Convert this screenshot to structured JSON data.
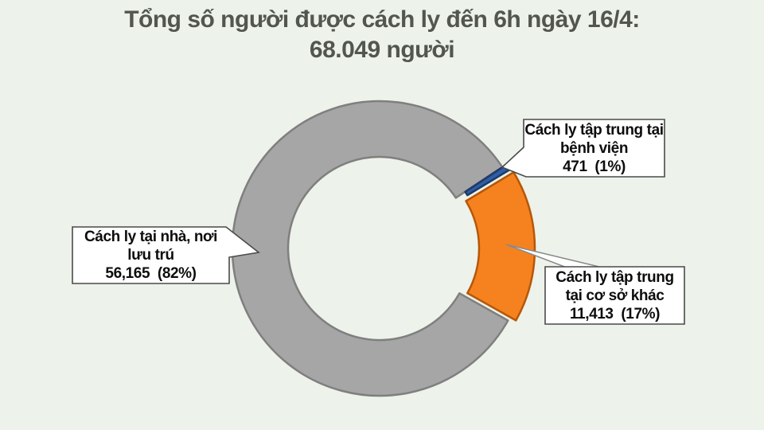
{
  "page": {
    "background_color": "#edf2ea"
  },
  "title": {
    "line1": "Tổng số người được cách ly đến 6h ngày 16/4:",
    "line2": "68.049 người",
    "color": "#53564e"
  },
  "chart_data": {
    "type": "pie",
    "donut": true,
    "title": "Tổng số người được cách ly đến 6h ngày 16/4: 68.049 người",
    "total": 68049,
    "unit": "người",
    "legend_position": "callouts",
    "segments": [
      {
        "label": "Cách ly tại nhà, nơi lưu trú",
        "value": 56165,
        "percent_label": "82%",
        "fill": "#a6a6a6",
        "stroke": "#7f7f7f"
      },
      {
        "label": "Cách ly tập trung tại bệnh viện",
        "value": 471,
        "percent_label": "1%",
        "fill": "#2f5da6",
        "stroke": "#1e3a66"
      },
      {
        "label": "Cách ly tập trung tại cơ sở khác",
        "value": 11413,
        "percent_label": "17%",
        "fill": "#f5821f",
        "stroke": "#b65708"
      }
    ]
  },
  "callouts": [
    {
      "id": "home",
      "lines": [
        "Cách ly tại nhà, nơi",
        "lưu trú",
        "56,165  (82%)"
      ]
    },
    {
      "id": "hospital",
      "lines": [
        "Cách ly tập trung tại",
        "bệnh viện",
        "471  (1%)"
      ]
    },
    {
      "id": "other",
      "lines": [
        "Cách ly tập trung",
        "tại cơ sở khác",
        "11,413  (17%)"
      ]
    }
  ]
}
